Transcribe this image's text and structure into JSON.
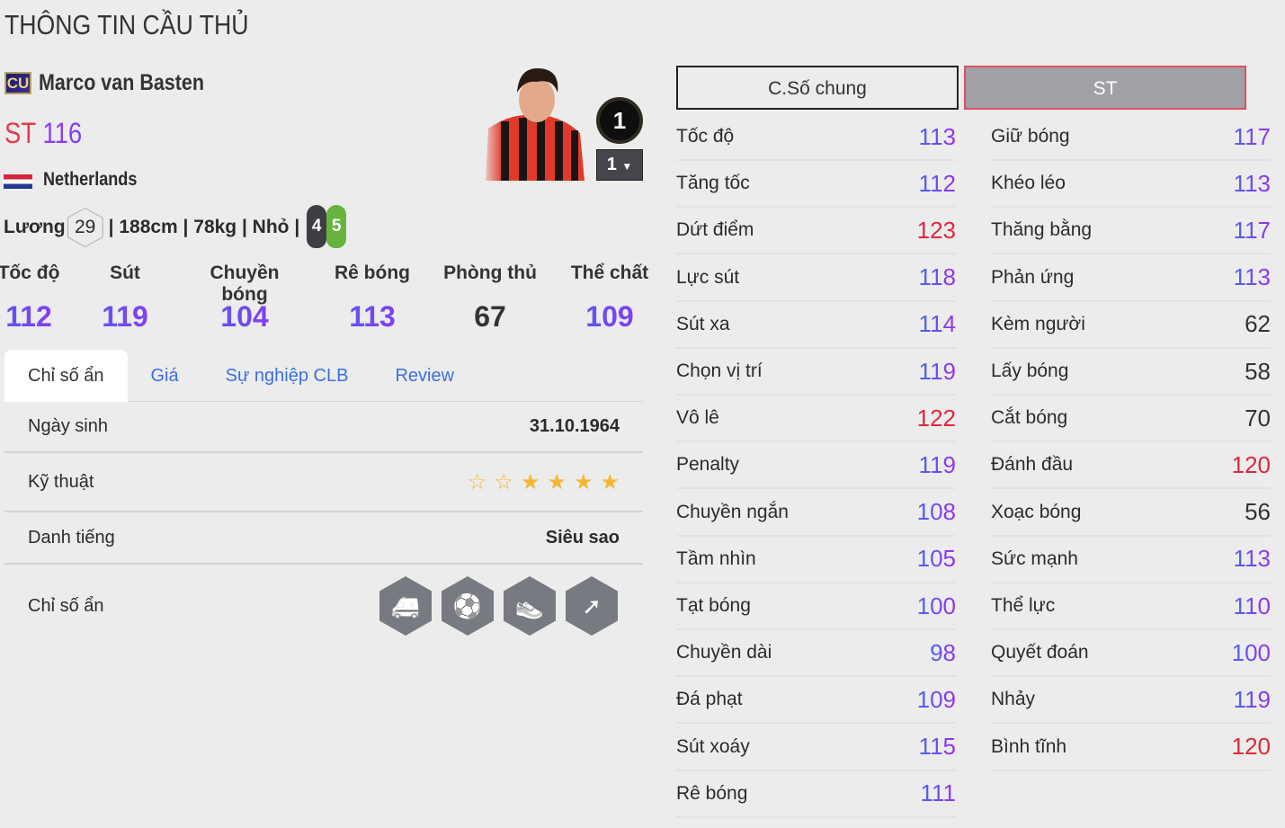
{
  "page_title": "THÔNG TIN CẦU THỦ",
  "player": {
    "season_badge": "CU",
    "name": "Marco van Basten",
    "position": "ST",
    "ovr": "116",
    "nation": "Netherlands",
    "salary_label": "Lương",
    "salary": "29",
    "info": "| 188cm | 78kg | Nhỏ |",
    "weak_foot": "4",
    "strong_foot": "5",
    "rank_badge": "1",
    "level": "1"
  },
  "attributes": [
    {
      "label": "Tốc độ",
      "value": "112"
    },
    {
      "label": "Sút",
      "value": "119"
    },
    {
      "label": "Chuyền bóng",
      "value": "104"
    },
    {
      "label": "Rê bóng",
      "value": "113"
    },
    {
      "label": "Phòng thủ",
      "value": "67"
    },
    {
      "label": "Thể chất",
      "value": "109"
    }
  ],
  "tabs": [
    {
      "label": "Chỉ số ẩn",
      "active": true
    },
    {
      "label": "Giá"
    },
    {
      "label": "Sự nghiệp CLB"
    },
    {
      "label": "Review"
    }
  ],
  "info_rows": {
    "birth_label": "Ngày sinh",
    "birth": "31.10.1964",
    "skill_label": "Kỹ thuật",
    "skill_stars": 4,
    "skill_stars_total": 6,
    "rep_label": "Danh tiếng",
    "rep": "Siêu sao",
    "traits_label": "Chỉ số ẩn",
    "traits": [
      "injury-prone-ambulance-icon",
      "goal-finesse-shot-icon",
      "boot-power-shot-icon",
      "dribbling-route-icon"
    ]
  },
  "stat_tabs": {
    "general": "C.Số chung",
    "position": "ST"
  },
  "colors": {
    "high": "#e0283c",
    "normal_from": "#4a63f0",
    "normal_to": "#9b2ff0",
    "low": "#333333",
    "tab_link": "#3d6fe0"
  },
  "stats_left": [
    {
      "label": "Tốc độ",
      "value": 113
    },
    {
      "label": "Tăng tốc",
      "value": 112
    },
    {
      "label": "Dứt điểm",
      "value": 123
    },
    {
      "label": "Lực sút",
      "value": 118
    },
    {
      "label": "Sút xa",
      "value": 114
    },
    {
      "label": "Chọn vị trí",
      "value": 119
    },
    {
      "label": "Vô lê",
      "value": 122
    },
    {
      "label": "Penalty",
      "value": 119
    },
    {
      "label": "Chuyền ngắn",
      "value": 108
    },
    {
      "label": "Tầm nhìn",
      "value": 105
    },
    {
      "label": "Tạt bóng",
      "value": 100
    },
    {
      "label": "Chuyền dài",
      "value": 98
    },
    {
      "label": "Đá phạt",
      "value": 109
    },
    {
      "label": "Sút xoáy",
      "value": 115
    },
    {
      "label": "Rê bóng",
      "value": 111
    }
  ],
  "stats_right": [
    {
      "label": "Giữ bóng",
      "value": 117
    },
    {
      "label": "Khéo léo",
      "value": 113
    },
    {
      "label": "Thăng bằng",
      "value": 117
    },
    {
      "label": "Phản ứng",
      "value": 113
    },
    {
      "label": "Kèm người",
      "value": 62
    },
    {
      "label": "Lấy bóng",
      "value": 58
    },
    {
      "label": "Cắt bóng",
      "value": 70
    },
    {
      "label": "Đánh đầu",
      "value": 120
    },
    {
      "label": "Xoạc bóng",
      "value": 56
    },
    {
      "label": "Sức mạnh",
      "value": 113
    },
    {
      "label": "Thể lực",
      "value": 110
    },
    {
      "label": "Quyết đoán",
      "value": 100
    },
    {
      "label": "Nhảy",
      "value": 119
    },
    {
      "label": "Bình tĩnh",
      "value": 120
    }
  ]
}
